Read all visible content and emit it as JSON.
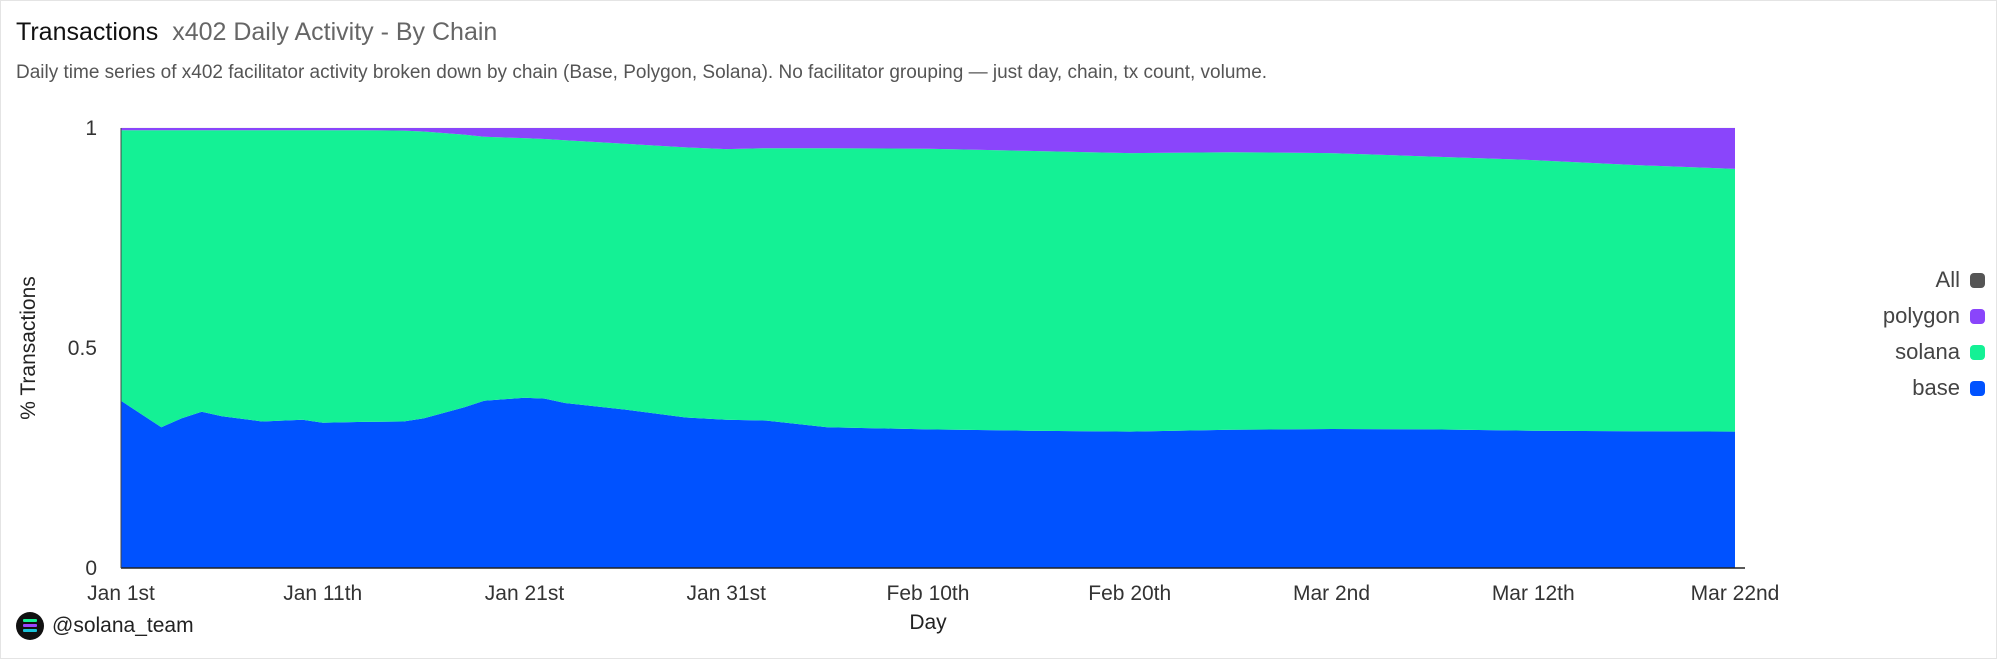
{
  "header": {
    "title": "Transactions",
    "subtitle": "x402 Daily Activity - By Chain",
    "description": "Daily time series of x402 facilitator activity broken down by chain (Base, Polygon, Solana). No facilitator grouping — just day, chain, tx count, volume."
  },
  "legend": {
    "items": [
      {
        "label": "All",
        "color": "#555555"
      },
      {
        "label": "polygon",
        "color": "#8a45fb"
      },
      {
        "label": "solana",
        "color": "#14f195"
      },
      {
        "label": "base",
        "color": "#0052ff"
      }
    ]
  },
  "watermark": {
    "handle": "@solana_team",
    "icon": "solana-logo-icon"
  },
  "chart_data": {
    "type": "area",
    "stacked": true,
    "normalized": true,
    "xlabel": "Day",
    "ylabel": "% Transactions",
    "ylim": [
      0,
      1
    ],
    "y_ticks": [
      "0",
      "0.5",
      "1"
    ],
    "x_ticks": [
      "Jan 1st",
      "Jan 11th",
      "Jan 21st",
      "Jan 31st",
      "Feb 10th",
      "Feb 20th",
      "Mar 2nd",
      "Mar 12th",
      "Mar 22nd"
    ],
    "x_range": [
      "Jan 1st",
      "Mar 22nd"
    ],
    "grid": "horizontal",
    "legend_position": "right",
    "series": [
      {
        "name": "base",
        "color": "#0052ff",
        "points": [
          [
            "Jan 1st",
            0.38
          ],
          [
            "Jan 3rd",
            0.32
          ],
          [
            "Jan 4th",
            0.34
          ],
          [
            "Jan 5th",
            0.355
          ],
          [
            "Jan 6th",
            0.345
          ],
          [
            "Jan 8th",
            0.333
          ],
          [
            "Jan 10th",
            0.337
          ],
          [
            "Jan 11th",
            0.33
          ],
          [
            "Jan 13th",
            0.332
          ],
          [
            "Jan 15th",
            0.333
          ],
          [
            "Jan 16th",
            0.34
          ],
          [
            "Jan 18th",
            0.365
          ],
          [
            "Jan 19th",
            0.38
          ],
          [
            "Jan 21st",
            0.387
          ],
          [
            "Jan 22nd",
            0.385
          ],
          [
            "Jan 23rd",
            0.375
          ],
          [
            "Jan 26th",
            0.36
          ],
          [
            "Jan 29th",
            0.342
          ],
          [
            "Jan 31st",
            0.337
          ],
          [
            "Feb 2nd",
            0.335
          ],
          [
            "Feb 5th",
            0.32
          ],
          [
            "Feb 10th",
            0.315
          ],
          [
            "Feb 15th",
            0.312
          ],
          [
            "Feb 20th",
            0.31
          ],
          [
            "Feb 25th",
            0.314
          ],
          [
            "Mar 2nd",
            0.316
          ],
          [
            "Mar 7th",
            0.315
          ],
          [
            "Mar 12th",
            0.312
          ],
          [
            "Mar 17th",
            0.311
          ],
          [
            "Mar 22nd",
            0.31
          ]
        ]
      },
      {
        "name": "solana",
        "color": "#14f195",
        "points": [
          [
            "Jan 1st",
            0.615
          ],
          [
            "Jan 3rd",
            0.675
          ],
          [
            "Jan 4th",
            0.655
          ],
          [
            "Jan 5th",
            0.64
          ],
          [
            "Jan 6th",
            0.65
          ],
          [
            "Jan 8th",
            0.662
          ],
          [
            "Jan 10th",
            0.658
          ],
          [
            "Jan 11th",
            0.665
          ],
          [
            "Jan 13th",
            0.663
          ],
          [
            "Jan 15th",
            0.661
          ],
          [
            "Jan 16th",
            0.652
          ],
          [
            "Jan 18th",
            0.62
          ],
          [
            "Jan 19th",
            0.6
          ],
          [
            "Jan 21st",
            0.59
          ],
          [
            "Jan 22nd",
            0.59
          ],
          [
            "Jan 23rd",
            0.597
          ],
          [
            "Jan 26th",
            0.604
          ],
          [
            "Jan 29th",
            0.614
          ],
          [
            "Jan 31st",
            0.615
          ],
          [
            "Feb 2nd",
            0.619
          ],
          [
            "Feb 5th",
            0.634
          ],
          [
            "Feb 10th",
            0.638
          ],
          [
            "Feb 15th",
            0.636
          ],
          [
            "Feb 20th",
            0.633
          ],
          [
            "Feb 25th",
            0.631
          ],
          [
            "Mar 2nd",
            0.627
          ],
          [
            "Mar 7th",
            0.62
          ],
          [
            "Mar 12th",
            0.615
          ],
          [
            "Mar 17th",
            0.605
          ],
          [
            "Mar 22nd",
            0.597
          ]
        ]
      },
      {
        "name": "polygon",
        "color": "#8a45fb",
        "points": [
          [
            "Jan 1st",
            0.005
          ],
          [
            "Jan 3rd",
            0.005
          ],
          [
            "Jan 4th",
            0.005
          ],
          [
            "Jan 5th",
            0.005
          ],
          [
            "Jan 6th",
            0.005
          ],
          [
            "Jan 8th",
            0.005
          ],
          [
            "Jan 10th",
            0.005
          ],
          [
            "Jan 11th",
            0.005
          ],
          [
            "Jan 13th",
            0.005
          ],
          [
            "Jan 15th",
            0.006
          ],
          [
            "Jan 16th",
            0.008
          ],
          [
            "Jan 18th",
            0.015
          ],
          [
            "Jan 19th",
            0.02
          ],
          [
            "Jan 21st",
            0.023
          ],
          [
            "Jan 22nd",
            0.025
          ],
          [
            "Jan 23rd",
            0.028
          ],
          [
            "Jan 26th",
            0.036
          ],
          [
            "Jan 29th",
            0.044
          ],
          [
            "Jan 31st",
            0.048
          ],
          [
            "Feb 2nd",
            0.046
          ],
          [
            "Feb 5th",
            0.046
          ],
          [
            "Feb 10th",
            0.047
          ],
          [
            "Feb 15th",
            0.052
          ],
          [
            "Feb 20th",
            0.057
          ],
          [
            "Feb 25th",
            0.055
          ],
          [
            "Mar 2nd",
            0.057
          ],
          [
            "Mar 7th",
            0.065
          ],
          [
            "Mar 12th",
            0.073
          ],
          [
            "Mar 17th",
            0.084
          ],
          [
            "Mar 22nd",
            0.093
          ]
        ]
      }
    ]
  }
}
